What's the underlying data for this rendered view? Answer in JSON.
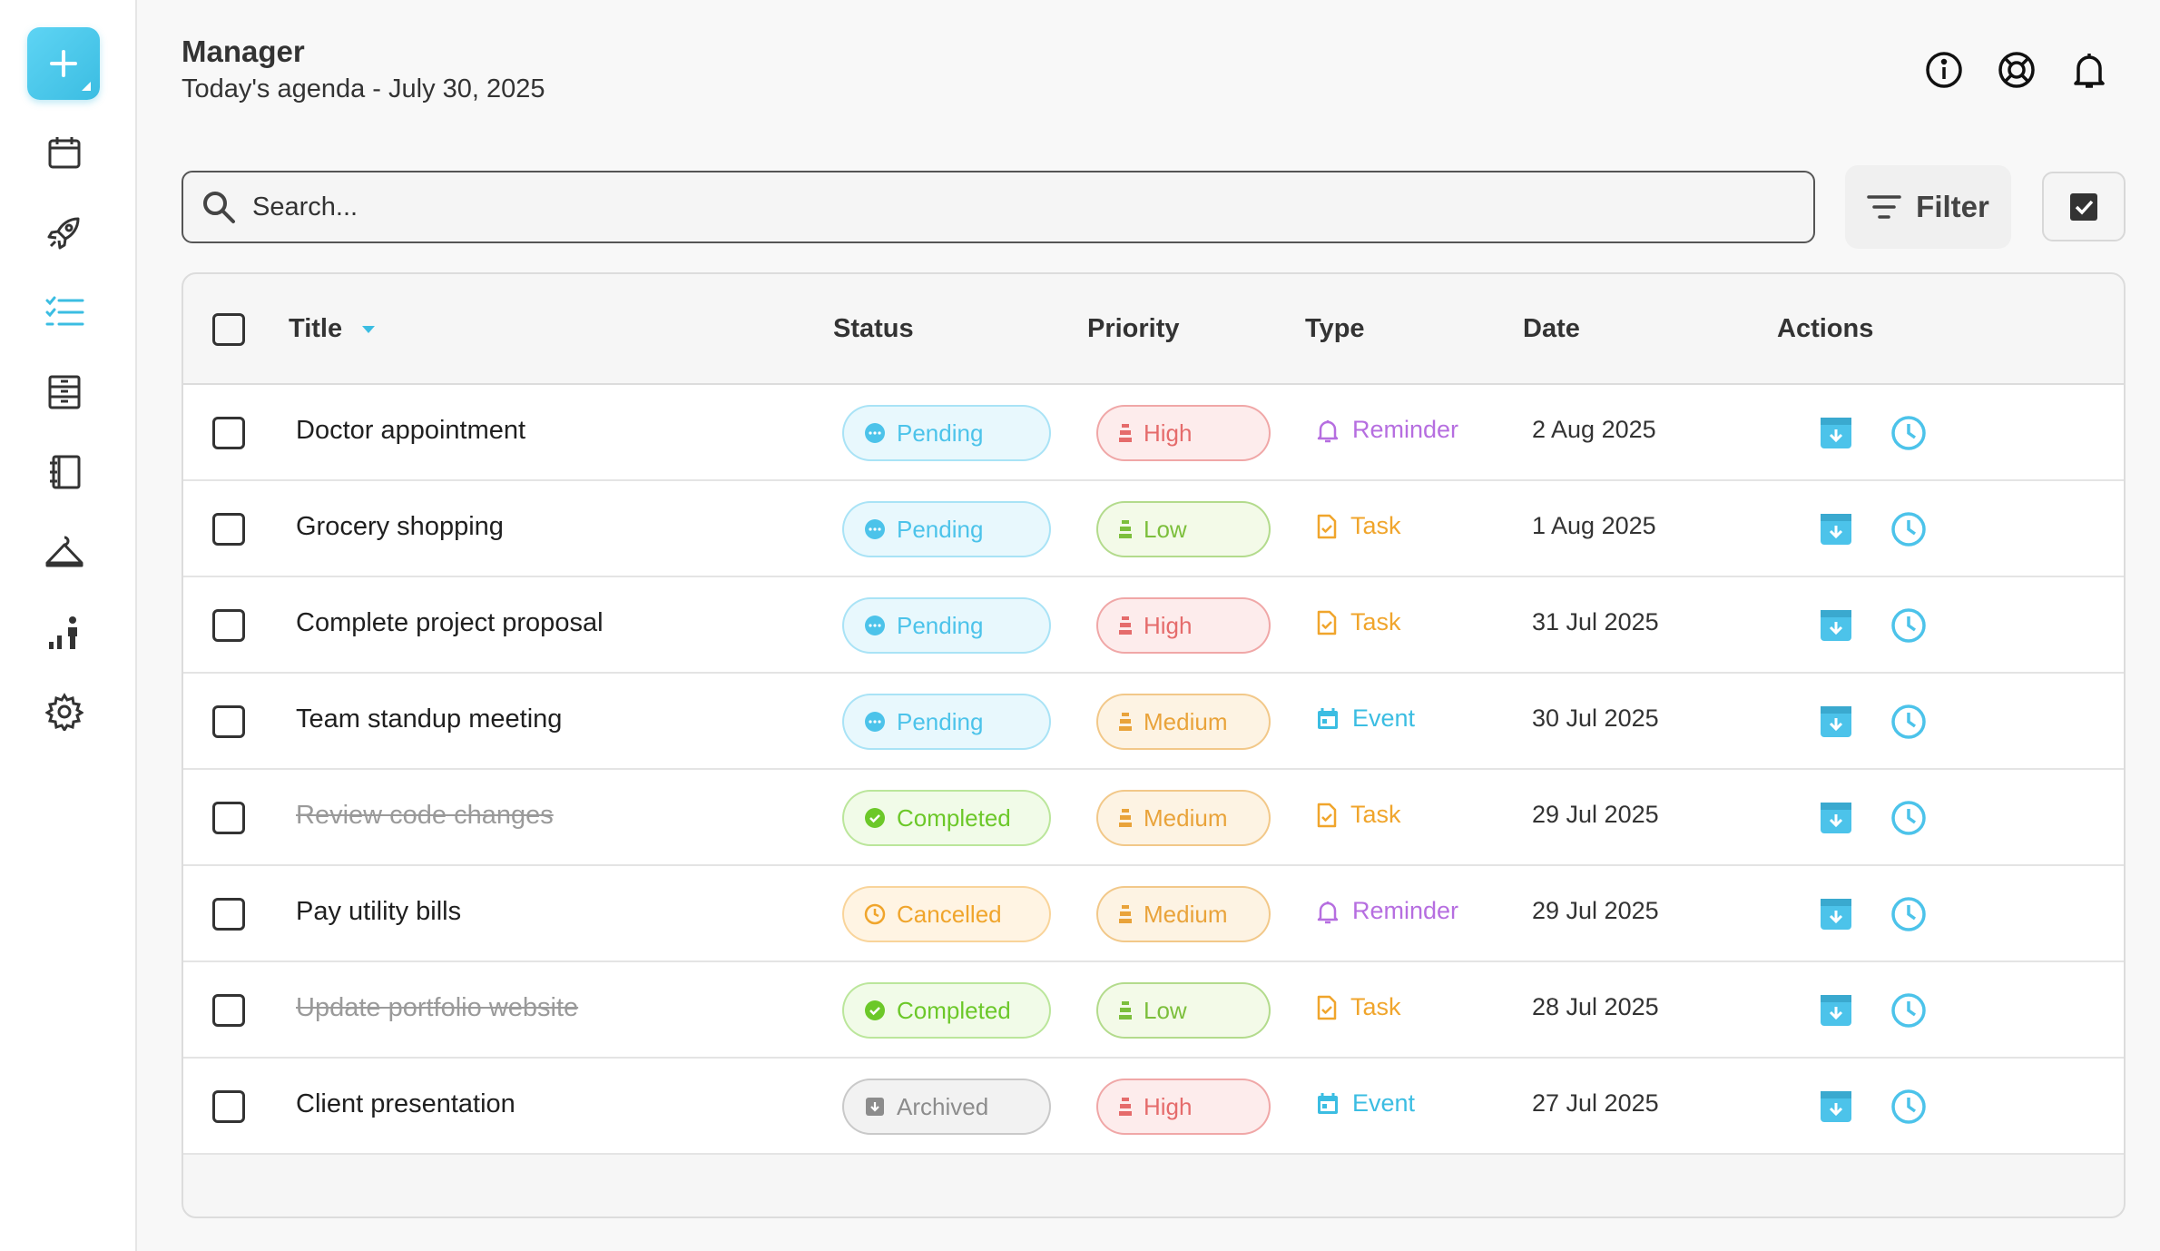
{
  "header": {
    "title": "Manager",
    "subtitle": "Today's agenda - July 30, 2025"
  },
  "search": {
    "placeholder": "Search...",
    "value": ""
  },
  "toolbar": {
    "filter_label": "Filter"
  },
  "sidebar": {
    "items": [
      {
        "name": "calendar",
        "icon": "calendar-icon",
        "active": false
      },
      {
        "name": "rocket",
        "icon": "rocket-icon",
        "active": false
      },
      {
        "name": "tasks",
        "icon": "list-icon",
        "active": true
      },
      {
        "name": "archive",
        "icon": "cabinet-icon",
        "active": false
      },
      {
        "name": "notebook",
        "icon": "notebook-icon",
        "active": false
      },
      {
        "name": "hanger",
        "icon": "hanger-icon",
        "active": false
      },
      {
        "name": "stats",
        "icon": "stats-icon",
        "active": false
      },
      {
        "name": "settings",
        "icon": "gear-icon",
        "active": false
      }
    ]
  },
  "table": {
    "columns": [
      "Title",
      "Status",
      "Priority",
      "Type",
      "Date",
      "Actions"
    ],
    "rows": [
      {
        "title": "Doctor appointment",
        "status": "Pending",
        "priority": "High",
        "type": "Reminder",
        "date": "2 Aug 2025",
        "done": false
      },
      {
        "title": "Grocery shopping",
        "status": "Pending",
        "priority": "Low",
        "type": "Task",
        "date": "1 Aug 2025",
        "done": false
      },
      {
        "title": "Complete project proposal",
        "status": "Pending",
        "priority": "High",
        "type": "Task",
        "date": "31 Jul 2025",
        "done": false
      },
      {
        "title": "Team standup meeting",
        "status": "Pending",
        "priority": "Medium",
        "type": "Event",
        "date": "30 Jul 2025",
        "done": false
      },
      {
        "title": "Review code changes",
        "status": "Completed",
        "priority": "Medium",
        "type": "Task",
        "date": "29 Jul 2025",
        "done": true
      },
      {
        "title": "Pay utility bills",
        "status": "Cancelled",
        "priority": "Medium",
        "type": "Reminder",
        "date": "29 Jul 2025",
        "done": false
      },
      {
        "title": "Update portfolio website",
        "status": "Completed",
        "priority": "Low",
        "type": "Task",
        "date": "28 Jul 2025",
        "done": true
      },
      {
        "title": "Client presentation",
        "status": "Archived",
        "priority": "High",
        "type": "Event",
        "date": "27 Jul 2025",
        "done": false
      }
    ]
  },
  "colors": {
    "accent": "#3bbde2",
    "pending": "#4cc3ea",
    "completed": "#6cc829",
    "cancelled": "#f0a52c",
    "archived": "#8c8c8c",
    "high": "#e56b6b",
    "medium": "#e9a33a",
    "low": "#7cbf3c",
    "reminder": "#b66ee0",
    "task": "#f0a52c",
    "event": "#3bbde2"
  }
}
